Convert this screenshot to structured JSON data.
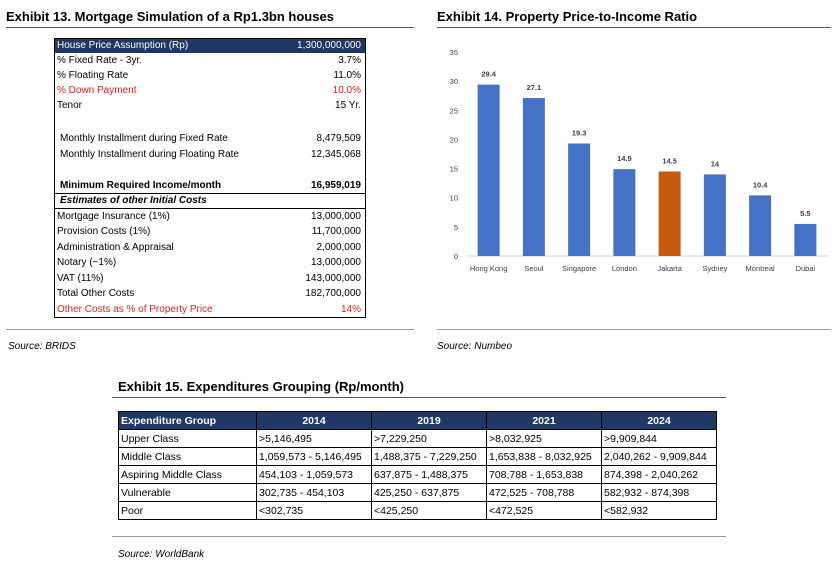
{
  "exhibit13": {
    "title": "Exhibit 13. Mortgage Simulation of a Rp1.3bn houses",
    "rows": [
      {
        "label": "House Price Assumption (Rp)",
        "value": "1,300,000,000"
      },
      {
        "label": "% Fixed Rate - 3yr.",
        "value": "3.7%"
      },
      {
        "label": "% Floating Rate",
        "value": "11.0%"
      },
      {
        "label": "% Down Payment",
        "value": "10.0%"
      },
      {
        "label": "Tenor",
        "value": "15 Yr."
      },
      {
        "label": "Monthly Installment  during Fixed Rate",
        "value": "8,479,509"
      },
      {
        "label": "Monthly Installment  during Floating Rate",
        "value": "12,345,068"
      },
      {
        "label": "Minimum Required Income/month",
        "value": "16,959,019"
      },
      {
        "label": "Estimates of other Initial Costs",
        "value": ""
      },
      {
        "label": "Mortgage Insurance (1%)",
        "value": "13,000,000"
      },
      {
        "label": "Provision Costs (1%)",
        "value": "11,700,000"
      },
      {
        "label": "Administration & Appraisal",
        "value": "2,000,000"
      },
      {
        "label": "Notary (~1%)",
        "value": "13,000,000"
      },
      {
        "label": "VAT (11%)",
        "value": "143,000,000"
      },
      {
        "label": "Total Other Costs",
        "value": "182,700,000"
      },
      {
        "label": "Other Costs as % of Property Price",
        "value": "14%"
      }
    ],
    "source": "Source: BRIDS"
  },
  "exhibit14": {
    "title": "Exhibit 14. Property Price-to-Income Ratio",
    "source": "Source: Numbeo",
    "bar_color": "#4472c4",
    "highlight_color": "#c55a11"
  },
  "chart_data": {
    "type": "bar",
    "title": "Exhibit 14. Property Price-to-Income Ratio",
    "categories": [
      "Hong Kong",
      "Seoul",
      "Singapore",
      "London",
      "Jakarta",
      "Sydney",
      "Montreal",
      "Dubai"
    ],
    "values": [
      29.4,
      27.1,
      19.3,
      14.9,
      14.5,
      14,
      10.4,
      5.5
    ],
    "value_labels": [
      "29.4",
      "27.1",
      "19.3",
      "14.9",
      "14.5",
      "14",
      "10.4",
      "5.5"
    ],
    "highlight_category": "Jakarta",
    "yticks": [
      "0",
      "5",
      "10",
      "15",
      "20",
      "25",
      "30",
      "35"
    ],
    "ylim": [
      0,
      35
    ],
    "xlabel": "",
    "ylabel": "",
    "grid": false,
    "legend": "none"
  },
  "exhibit15": {
    "title": "Exhibit 15. Expenditures Grouping (Rp/month)",
    "headers": [
      "Expenditure Group",
      "2014",
      "2019",
      "2021",
      "2024"
    ],
    "rows": [
      [
        "Upper Class",
        ">5,146,495",
        ">7,229,250",
        ">8,032,925",
        ">9,909,844"
      ],
      [
        "Middle Class",
        "1,059,573 - 5,146,495",
        "1,488,375 - 7,229,250",
        "1,653,838 - 8,032,925",
        "2,040,262 - 9,909,844"
      ],
      [
        "Aspiring Middle Class",
        "454,103 - 1,059,573",
        "637,875 - 1,488,375",
        "708,788 - 1,653,838",
        "874,398 - 2,040,262"
      ],
      [
        "Vulnerable",
        "302,735 - 454,103",
        "425,250 - 637,875",
        "472,525 - 708,788",
        "582,932 - 874,398"
      ],
      [
        "Poor",
        "<302,735",
        "<425,250",
        "<472,525",
        "<582,932"
      ]
    ],
    "source": "Source: WorldBank"
  }
}
